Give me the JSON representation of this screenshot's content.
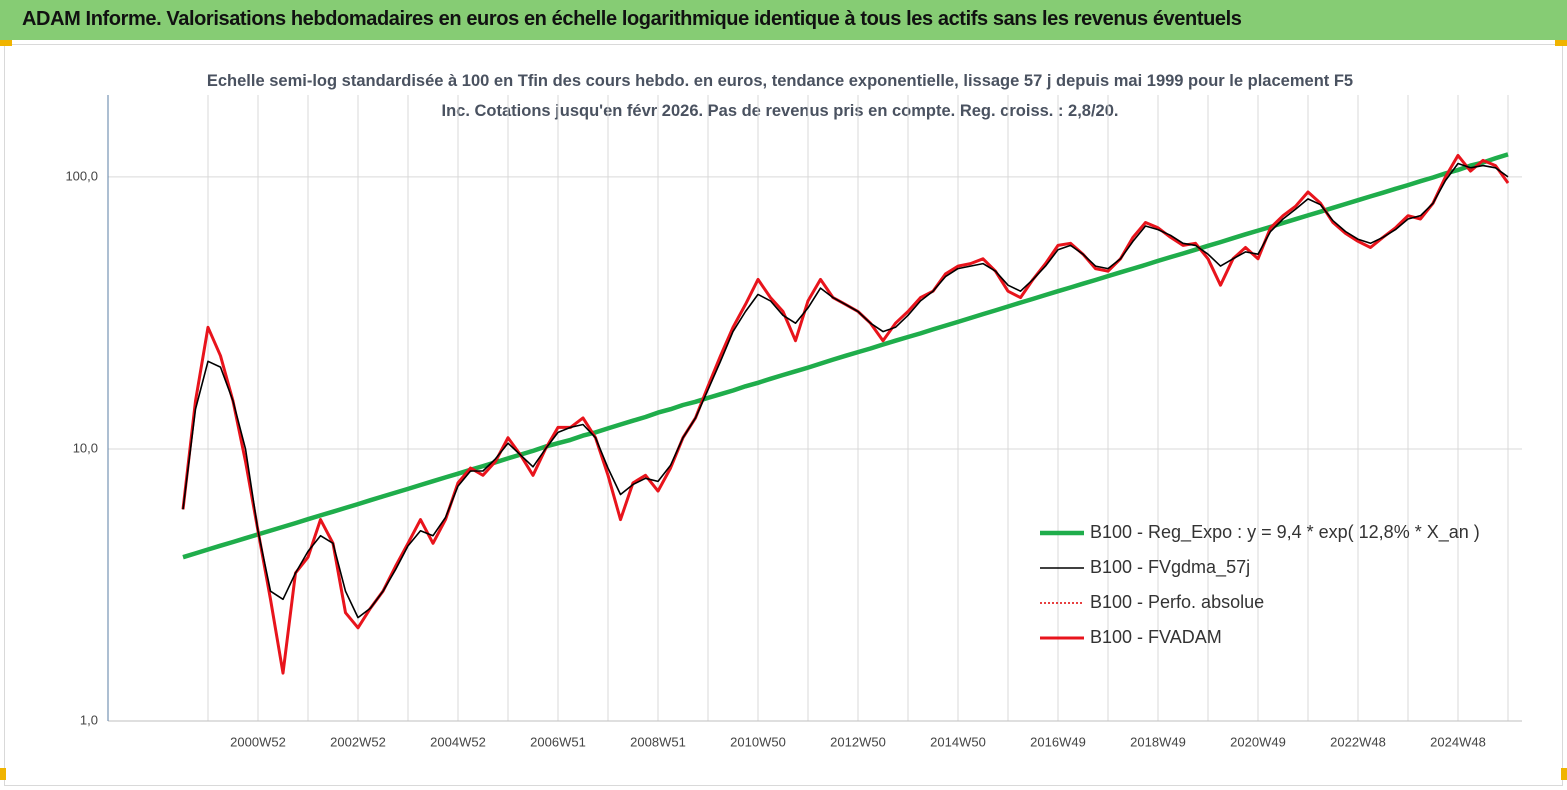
{
  "header": {
    "title": "ADAM Informe. Valorisations hebdomadaires en euros en échelle logarithmique identique à tous les actifs sans les revenus éventuels"
  },
  "chart_data": {
    "type": "line",
    "title": "Echelle semi-log standardisée à 100 en Tfin des cours hebdo. en euros, tendance exponentielle, lissage 57 j depuis mai 1999 pour le placement F5 Inc. Cotations jusqu'en févr 2026. Pas de revenus pris en compte. Reg. croiss. : 2,8/20.",
    "log_scale": true,
    "grid": true,
    "legend": "lower right",
    "ylim": [
      1,
      200
    ],
    "yticks": [
      {
        "value": 1,
        "label": "1,0"
      },
      {
        "value": 10,
        "label": "10,0"
      },
      {
        "value": 100,
        "label": "100,0"
      }
    ],
    "categories": [
      null,
      null,
      null,
      null,
      null,
      null,
      "2000W52",
      null,
      null,
      null,
      null,
      null,
      null,
      null,
      "2002W52",
      null,
      null,
      null,
      null,
      null,
      null,
      null,
      "2004W52",
      null,
      null,
      null,
      null,
      null,
      null,
      null,
      "2006W51",
      null,
      null,
      null,
      null,
      null,
      null,
      null,
      "2008W51",
      null,
      null,
      null,
      null,
      null,
      null,
      null,
      "2010W50",
      null,
      null,
      null,
      null,
      null,
      null,
      null,
      "2012W50",
      null,
      null,
      null,
      null,
      null,
      null,
      null,
      "2014W50",
      null,
      null,
      null,
      null,
      null,
      null,
      null,
      "2016W49",
      null,
      null,
      null,
      null,
      null,
      null,
      null,
      "2018W49",
      null,
      null,
      null,
      null,
      null,
      null,
      null,
      "2020W49",
      null,
      null,
      null,
      null,
      null,
      null,
      null,
      "2022W48",
      null,
      null,
      null,
      null,
      null,
      null,
      null,
      "2024W48",
      null,
      null,
      null,
      null
    ],
    "series": [
      {
        "name": "B100 - Reg_Expo : y = 9,4 * exp( 12,8% *  X_an )",
        "color": "#1fad4b",
        "width": 4.5,
        "values": [
          4.0,
          4.13,
          4.27,
          4.41,
          4.55,
          4.7,
          4.85,
          5.01,
          5.17,
          5.34,
          5.52,
          5.7,
          5.88,
          6.07,
          6.27,
          6.48,
          6.69,
          6.91,
          7.13,
          7.37,
          7.61,
          7.86,
          8.11,
          8.38,
          8.65,
          8.93,
          9.23,
          9.53,
          9.84,
          10.2,
          10.5,
          10.8,
          11.2,
          11.5,
          11.9,
          12.3,
          12.7,
          13.1,
          13.6,
          14.0,
          14.5,
          14.9,
          15.4,
          15.9,
          16.4,
          17.0,
          17.5,
          18.1,
          18.7,
          19.3,
          19.9,
          20.6,
          21.3,
          22.0,
          22.7,
          23.4,
          24.2,
          25.0,
          25.8,
          26.6,
          27.5,
          28.4,
          29.3,
          30.3,
          31.3,
          32.3,
          33.4,
          34.5,
          35.6,
          36.8,
          38.0,
          39.2,
          40.5,
          41.8,
          43.2,
          44.6,
          46.0,
          47.5,
          49.1,
          50.7,
          52.3,
          54.0,
          55.8,
          57.6,
          59.5,
          61.5,
          63.5,
          65.5,
          67.7,
          69.9,
          72.2,
          74.5,
          77.0,
          79.5,
          82.1,
          84.8,
          87.5,
          90.4,
          93.3,
          96.4,
          99.5,
          103,
          106,
          110,
          113,
          117,
          121
        ]
      },
      {
        "name": "B100 - FVgdma_57j",
        "color": "#000000",
        "width": 1.6,
        "values": [
          6,
          14,
          21,
          20,
          15,
          10,
          5,
          3,
          2.8,
          3.5,
          4.2,
          4.8,
          4.5,
          3,
          2.4,
          2.6,
          3.0,
          3.6,
          4.4,
          5.0,
          4.8,
          5.6,
          7.3,
          8.3,
          8.3,
          9.2,
          10.5,
          9.5,
          8.6,
          10,
          11.5,
          12,
          12.3,
          11,
          8.5,
          6.8,
          7.4,
          7.8,
          7.6,
          8.7,
          11,
          13,
          16.5,
          21,
          27,
          32,
          37,
          35,
          31,
          29,
          33,
          39,
          36,
          34,
          32,
          29,
          27,
          28,
          31,
          35,
          38,
          43,
          46,
          47,
          48,
          45,
          40,
          38,
          42,
          47,
          54,
          56,
          52,
          47,
          46,
          50,
          58,
          66,
          64,
          61,
          57,
          56,
          52,
          47,
          50,
          53,
          52,
          63,
          70,
          76,
          83,
          79,
          69,
          63,
          59,
          57,
          60,
          64,
          70,
          72,
          80,
          97,
          112,
          108,
          110,
          108,
          100
        ]
      },
      {
        "name": "B100 - Perfo. absolue",
        "color": "#e00000",
        "width": 1.5,
        "dotted": true,
        "values": [
          6,
          15,
          28,
          22,
          15,
          9,
          5,
          2.8,
          1.5,
          3.5,
          4,
          5.5,
          4.5,
          2.5,
          2.2,
          2.6,
          3.0,
          3.7,
          4.5,
          5.5,
          4.5,
          5.5,
          7.5,
          8.5,
          8,
          9,
          11,
          9.5,
          8,
          10,
          12,
          12,
          13,
          11,
          8,
          5.5,
          7.5,
          8,
          7,
          8.5,
          11,
          13,
          17,
          22,
          28,
          34,
          42,
          36,
          32,
          25,
          35,
          42,
          36,
          34,
          32,
          29,
          25,
          29,
          32,
          36,
          38,
          44,
          47,
          48,
          50,
          45,
          38,
          36,
          42,
          48,
          56,
          57,
          52,
          46,
          45,
          50,
          60,
          68,
          65,
          60,
          56,
          57,
          50,
          40,
          50,
          55,
          50,
          65,
          72,
          78,
          88,
          80,
          68,
          62,
          58,
          55,
          60,
          65,
          72,
          70,
          80,
          100,
          120,
          105,
          115,
          110,
          95
        ]
      },
      {
        "name": "B100 - FVADAM",
        "color": "#e8141c",
        "width": 3,
        "values": [
          6,
          15,
          28,
          22,
          15,
          9,
          5,
          2.8,
          1.5,
          3.5,
          4,
          5.5,
          4.5,
          2.5,
          2.2,
          2.6,
          3.0,
          3.7,
          4.5,
          5.5,
          4.5,
          5.5,
          7.5,
          8.5,
          8,
          9,
          11,
          9.5,
          8,
          10,
          12,
          12,
          13,
          11,
          8,
          5.5,
          7.5,
          8,
          7,
          8.5,
          11,
          13,
          17,
          22,
          28,
          34,
          42,
          36,
          32,
          25,
          35,
          42,
          36,
          34,
          32,
          29,
          25,
          29,
          32,
          36,
          38,
          44,
          47,
          48,
          50,
          45,
          38,
          36,
          42,
          48,
          56,
          57,
          52,
          46,
          45,
          50,
          60,
          68,
          65,
          60,
          56,
          57,
          50,
          40,
          50,
          55,
          50,
          65,
          72,
          78,
          88,
          80,
          68,
          62,
          58,
          55,
          60,
          65,
          72,
          70,
          80,
          100,
          120,
          105,
          115,
          110,
          95
        ]
      }
    ]
  }
}
